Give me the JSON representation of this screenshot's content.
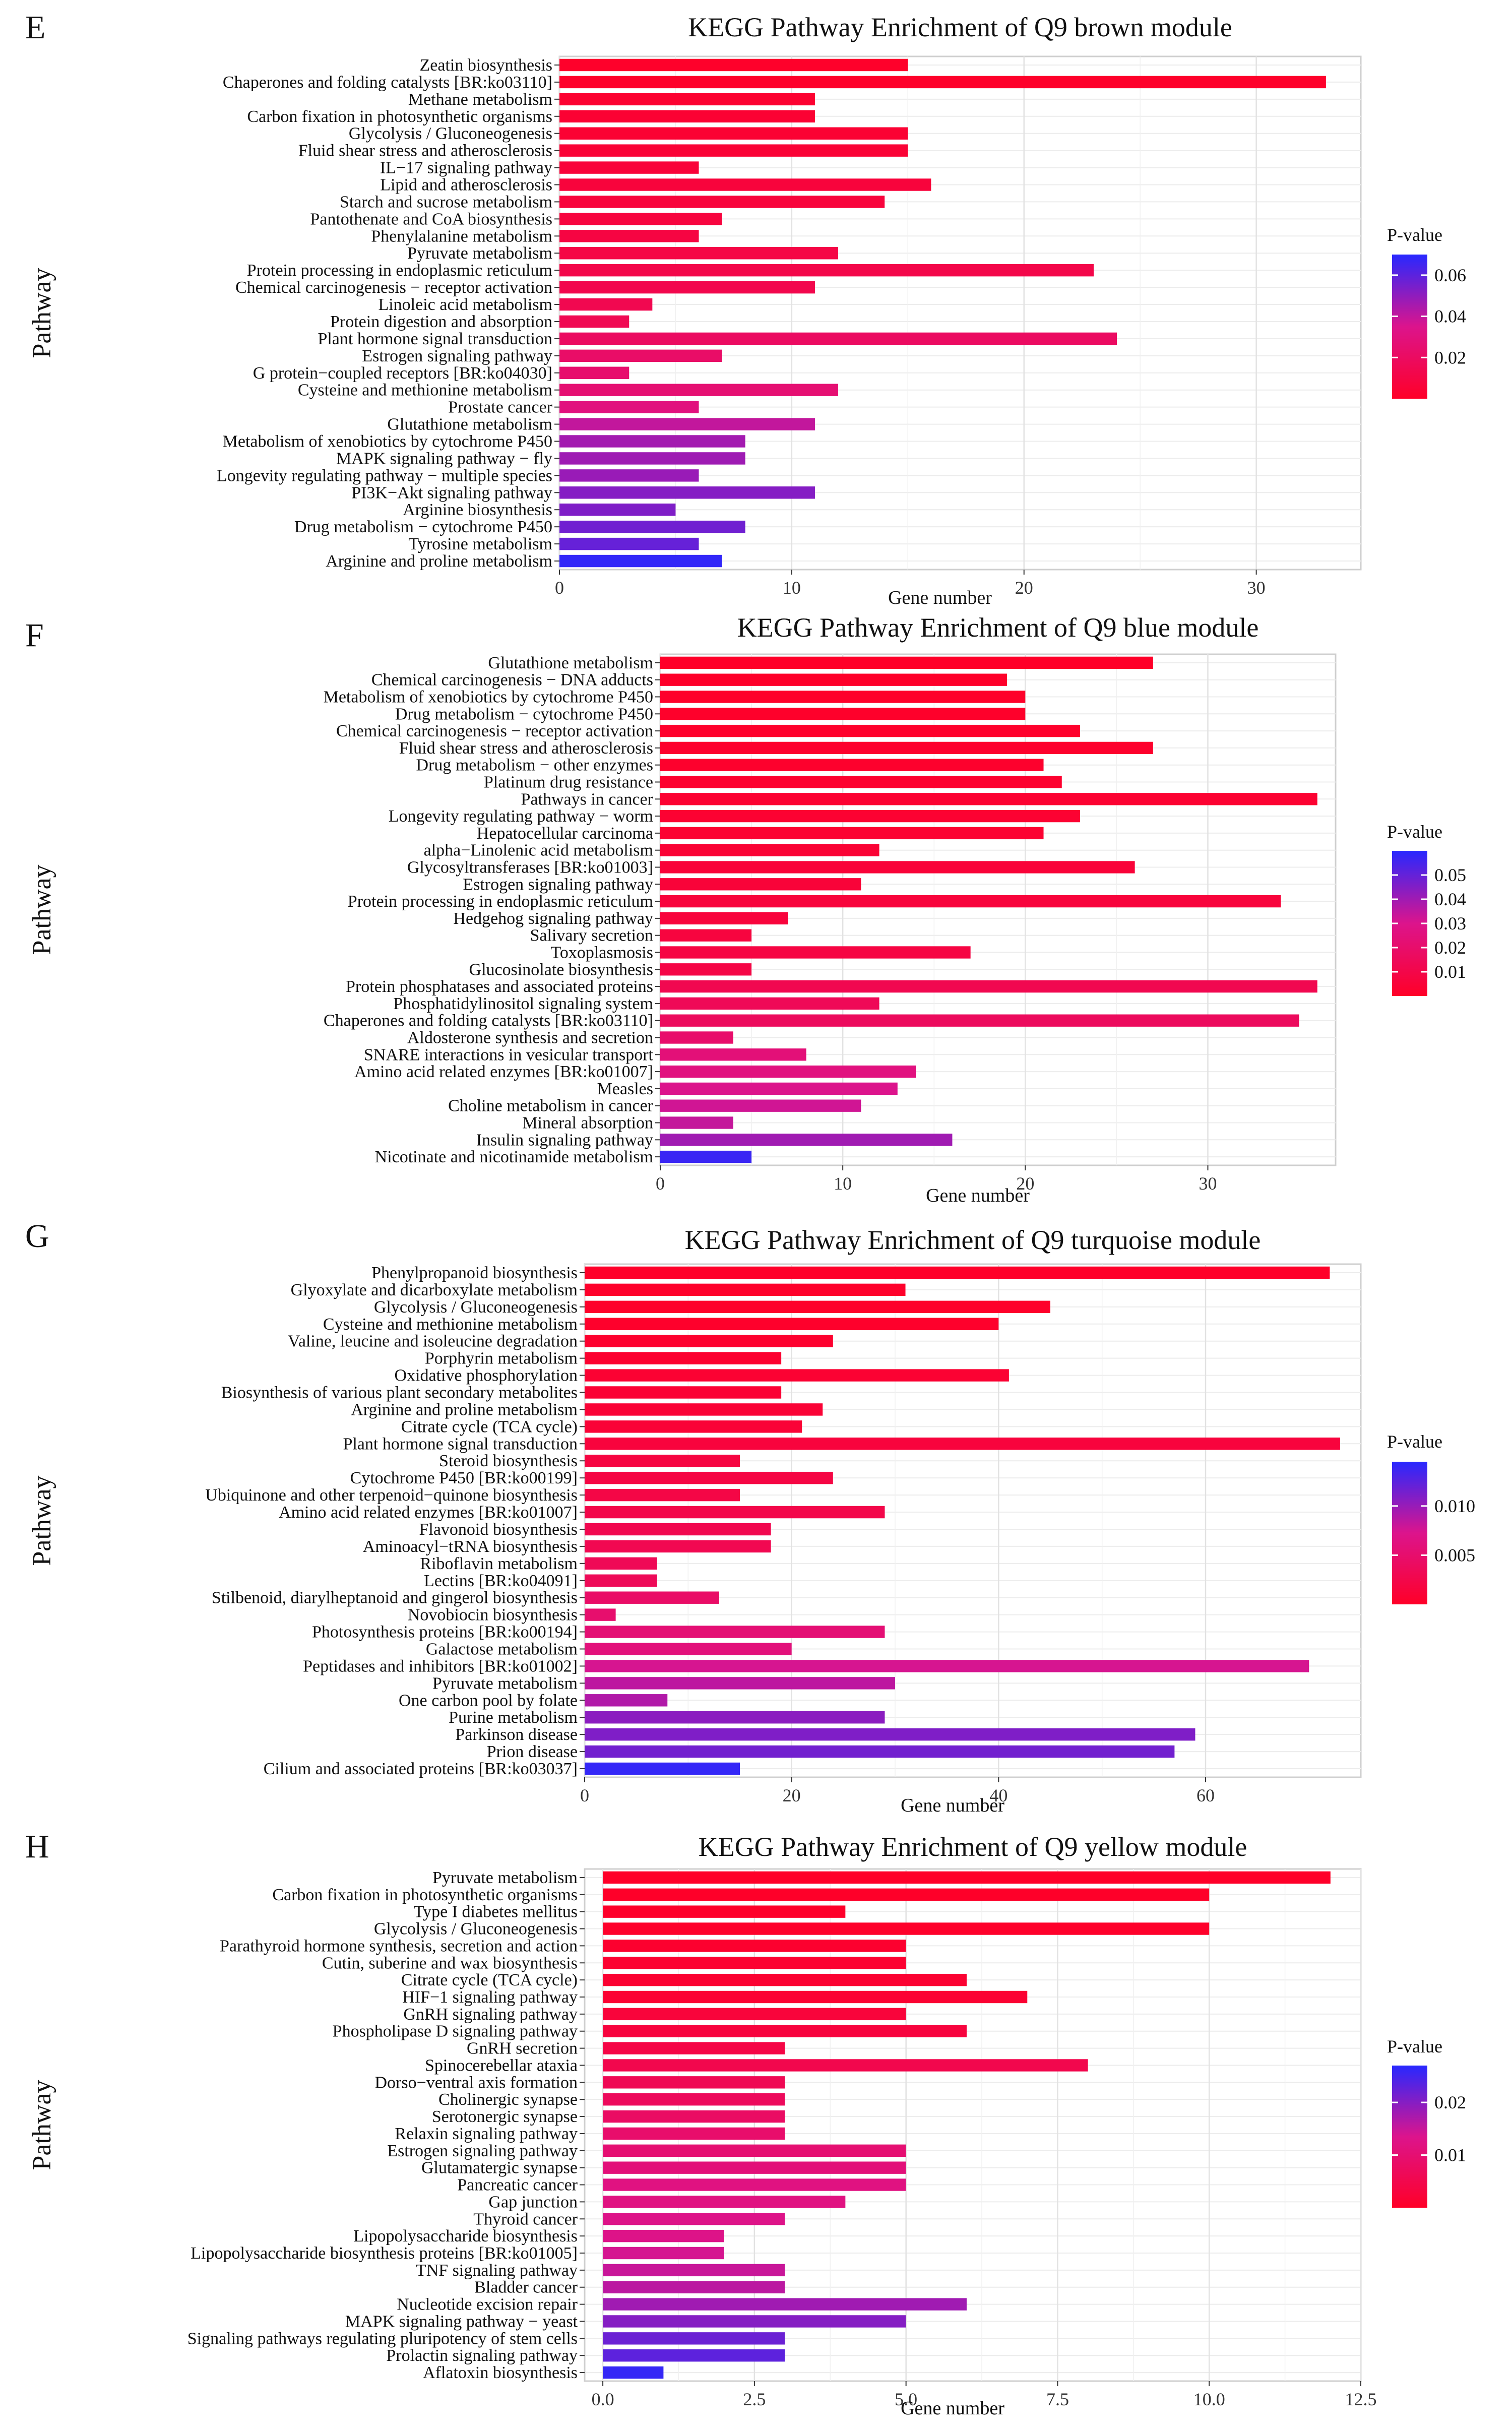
{
  "chart_data": [
    {
      "panel": "E",
      "type": "bar",
      "orientation": "horizontal",
      "title": "KEGG Pathway Enrichment of Q9 brown module",
      "xlabel": "Gene number",
      "ylabel": "Pathway",
      "xlim": [
        0,
        34.5
      ],
      "xticks": [
        0,
        10,
        20,
        30
      ],
      "xtick_labels": [
        "0",
        "10",
        "20",
        "30"
      ],
      "legend": {
        "title": "P-value",
        "range": [
          0,
          0.07
        ],
        "ticks": [
          0.02,
          0.04,
          0.06
        ],
        "tick_labels": [
          "0.02",
          "0.04",
          "0.06"
        ],
        "placement": "right"
      },
      "categories": [
        "Zeatin biosynthesis",
        "Chaperones and folding catalysts [BR:ko03110]",
        "Methane metabolism",
        "Carbon fixation in photosynthetic organisms",
        "Glycolysis / Gluconeogenesis",
        "Fluid shear stress and atherosclerosis",
        "IL−17 signaling pathway",
        "Lipid and atherosclerosis",
        "Starch and sucrose metabolism",
        "Pantothenate and CoA biosynthesis",
        "Phenylalanine metabolism",
        "Pyruvate metabolism",
        "Protein processing in endoplasmic reticulum",
        "Chemical carcinogenesis − receptor activation",
        "Linoleic acid metabolism",
        "Protein digestion and absorption",
        "Plant hormone signal transduction",
        "Estrogen signaling pathway",
        "G protein−coupled receptors [BR:ko04030]",
        "Cysteine and methionine metabolism",
        "Prostate cancer",
        "Glutathione metabolism",
        "Metabolism of xenobiotics by cytochrome P450",
        "MAPK signaling pathway − fly",
        "Longevity regulating pathway − multiple species",
        "PI3K−Akt signaling pathway",
        "Arginine biosynthesis",
        "Drug metabolism − cytochrome P450",
        "Tyrosine metabolism",
        "Arginine and proline metabolism"
      ],
      "values": [
        15,
        33,
        11,
        11,
        15,
        15,
        6,
        16,
        14,
        7,
        6,
        12,
        23,
        11,
        4,
        3,
        24,
        7,
        3,
        12,
        6,
        11,
        8,
        8,
        6,
        11,
        5,
        8,
        6,
        7
      ],
      "p_values": [
        0.001,
        0.001,
        0.003,
        0.004,
        0.004,
        0.005,
        0.006,
        0.007,
        0.007,
        0.008,
        0.009,
        0.01,
        0.012,
        0.013,
        0.014,
        0.015,
        0.02,
        0.022,
        0.024,
        0.026,
        0.03,
        0.04,
        0.046,
        0.047,
        0.048,
        0.052,
        0.053,
        0.056,
        0.058,
        0.068
      ]
    },
    {
      "panel": "F",
      "type": "bar",
      "orientation": "horizontal",
      "title": "KEGG Pathway Enrichment of Q9 blue module",
      "xlabel": "Gene number",
      "ylabel": "Pathway",
      "xlim": [
        0,
        37
      ],
      "xticks": [
        0,
        10,
        20,
        30
      ],
      "xtick_labels": [
        "0",
        "10",
        "20",
        "30"
      ],
      "legend": {
        "title": "P-value",
        "range": [
          0,
          0.06
        ],
        "ticks": [
          0.01,
          0.02,
          0.03,
          0.04,
          0.05
        ],
        "tick_labels": [
          "0.01",
          "0.02",
          "0.03",
          "0.04",
          "0.05"
        ],
        "placement": "right"
      },
      "categories": [
        "Glutathione metabolism",
        "Chemical carcinogenesis − DNA adducts",
        "Metabolism of xenobiotics by cytochrome P450",
        "Drug metabolism − cytochrome P450",
        "Chemical carcinogenesis − receptor activation",
        "Fluid shear stress and atherosclerosis",
        "Drug metabolism − other enzymes",
        "Platinum drug resistance",
        "Pathways in cancer",
        "Longevity regulating pathway − worm",
        "Hepatocellular carcinoma",
        "alpha−Linolenic acid metabolism",
        "Glycosyltransferases [BR:ko01003]",
        "Estrogen signaling pathway",
        "Protein processing in endoplasmic reticulum",
        "Hedgehog signaling pathway",
        "Salivary secretion",
        "Toxoplasmosis",
        "Glucosinolate biosynthesis",
        "Protein phosphatases and associated proteins",
        "Phosphatidylinositol signaling system",
        "Chaperones and folding catalysts [BR:ko03110]",
        "Aldosterone synthesis and secretion",
        "SNARE interactions in vesicular transport",
        "Amino acid related enzymes [BR:ko01007]",
        "Measles",
        "Choline metabolism in cancer",
        "Mineral absorption",
        "Insulin signaling pathway",
        "Nicotinate and nicotinamide metabolism"
      ],
      "values": [
        27,
        19,
        20,
        20,
        23,
        27,
        21,
        22,
        36,
        23,
        21,
        12,
        26,
        11,
        34,
        7,
        5,
        17,
        5,
        36,
        12,
        35,
        4,
        8,
        14,
        13,
        11,
        4,
        16,
        5
      ],
      "p_values": [
        0.0001,
        0.0005,
        0.0008,
        0.0008,
        0.0012,
        0.0015,
        0.0015,
        0.002,
        0.003,
        0.003,
        0.003,
        0.004,
        0.005,
        0.005,
        0.006,
        0.006,
        0.007,
        0.008,
        0.009,
        0.012,
        0.014,
        0.016,
        0.02,
        0.024,
        0.026,
        0.03,
        0.032,
        0.034,
        0.04,
        0.057
      ]
    },
    {
      "panel": "G",
      "type": "bar",
      "orientation": "horizontal",
      "title": "KEGG Pathway Enrichment of Q9 turquoise module",
      "xlabel": "Gene number",
      "ylabel": "Pathway",
      "xlim": [
        0,
        75
      ],
      "xticks": [
        0,
        20,
        40,
        60
      ],
      "xtick_labels": [
        "0",
        "20",
        "40",
        "60"
      ],
      "legend": {
        "title": "P-value",
        "range": [
          0,
          0.0145
        ],
        "ticks": [
          0.005,
          0.01
        ],
        "tick_labels": [
          "0.005",
          "0.010"
        ],
        "placement": "right"
      },
      "categories": [
        "Phenylpropanoid biosynthesis",
        "Glyoxylate and dicarboxylate metabolism",
        "Glycolysis / Gluconeogenesis",
        "Cysteine and methionine metabolism",
        "Valine, leucine and isoleucine degradation",
        "Porphyrin metabolism",
        "Oxidative phosphorylation",
        "Biosynthesis of various plant secondary metabolites",
        "Arginine and proline metabolism",
        "Citrate cycle (TCA cycle)",
        "Plant hormone signal transduction",
        "Steroid biosynthesis",
        "Cytochrome P450 [BR:ko00199]",
        "Ubiquinone and other terpenoid−quinone biosynthesis",
        "Amino acid related enzymes [BR:ko01007]",
        "Flavonoid biosynthesis",
        "Aminoacyl−tRNA biosynthesis",
        "Riboflavin metabolism",
        "Lectins [BR:ko04091]",
        "Stilbenoid, diarylheptanoid and gingerol biosynthesis",
        "Novobiocin biosynthesis",
        "Photosynthesis proteins [BR:ko00194]",
        "Galactose metabolism",
        "Peptidases and inhibitors [BR:ko01002]",
        "Pyruvate metabolism",
        "One carbon pool by folate",
        "Purine metabolism",
        "Parkinson disease",
        "Prion disease",
        "Cilium and associated proteins [BR:ko03037]"
      ],
      "values": [
        72,
        31,
        45,
        40,
        24,
        19,
        41,
        19,
        23,
        21,
        73,
        15,
        24,
        15,
        29,
        18,
        18,
        7,
        7,
        13,
        3,
        29,
        20,
        70,
        30,
        8,
        29,
        59,
        57,
        15
      ],
      "p_values": [
        0.0001,
        0.0002,
        0.0002,
        0.0003,
        0.0005,
        0.0006,
        0.0008,
        0.0009,
        0.001,
        0.0011,
        0.0015,
        0.0018,
        0.002,
        0.0022,
        0.0025,
        0.0028,
        0.003,
        0.0033,
        0.0035,
        0.0045,
        0.005,
        0.0055,
        0.006,
        0.0075,
        0.0085,
        0.009,
        0.0105,
        0.011,
        0.0115,
        0.014
      ]
    },
    {
      "panel": "H",
      "type": "bar",
      "orientation": "horizontal",
      "title": "KEGG Pathway Enrichment of Q9 yellow module",
      "xlabel": "Gene number",
      "ylabel": "Pathway",
      "xlim": [
        -0.3,
        12.5
      ],
      "xticks": [
        0,
        2.5,
        5,
        7.5,
        10,
        12.5
      ],
      "xtick_labels": [
        "0.0",
        "2.5",
        "5.0",
        "7.5",
        "10.0",
        "12.5"
      ],
      "legend": {
        "title": "P-value",
        "range": [
          0,
          0.027
        ],
        "ticks": [
          0.01,
          0.02
        ],
        "tick_labels": [
          "0.01",
          "0.02"
        ],
        "placement": "right"
      },
      "categories": [
        "Pyruvate metabolism",
        "Carbon fixation in photosynthetic organisms",
        "Type I diabetes mellitus",
        "Glycolysis / Gluconeogenesis",
        "Parathyroid hormone synthesis, secretion and action",
        "Cutin, suberine and wax biosynthesis",
        "Citrate cycle (TCA cycle)",
        "HIF−1 signaling pathway",
        "GnRH signaling pathway",
        "Phospholipase D signaling pathway",
        "GnRH secretion",
        "Spinocerebellar ataxia",
        "Dorso−ventral axis formation",
        "Cholinergic synapse",
        "Serotonergic synapse",
        "Relaxin signaling pathway",
        "Estrogen signaling pathway",
        "Glutamatergic synapse",
        "Pancreatic cancer",
        "Gap junction",
        "Thyroid cancer",
        "Lipopolysaccharide biosynthesis",
        "Lipopolysaccharide biosynthesis proteins [BR:ko01005]",
        "TNF signaling pathway",
        "Bladder cancer",
        "Nucleotide excision repair",
        "MAPK signaling pathway − yeast",
        "Signaling pathways regulating pluripotency of stem cells",
        "Prolactin signaling pathway",
        "Aflatoxin biosynthesis"
      ],
      "values": [
        12,
        10,
        4,
        10,
        5,
        5,
        6,
        7,
        5,
        6,
        3,
        8,
        3,
        3,
        3,
        3,
        5,
        5,
        5,
        4,
        3,
        2,
        2,
        3,
        3,
        6,
        5,
        3,
        3,
        1
      ],
      "p_values": [
        0.0001,
        0.0002,
        0.0003,
        0.0004,
        0.001,
        0.0012,
        0.0014,
        0.0015,
        0.0025,
        0.003,
        0.004,
        0.005,
        0.006,
        0.007,
        0.008,
        0.009,
        0.01,
        0.011,
        0.012,
        0.012,
        0.013,
        0.013,
        0.014,
        0.015,
        0.016,
        0.018,
        0.02,
        0.022,
        0.023,
        0.026
      ]
    }
  ]
}
